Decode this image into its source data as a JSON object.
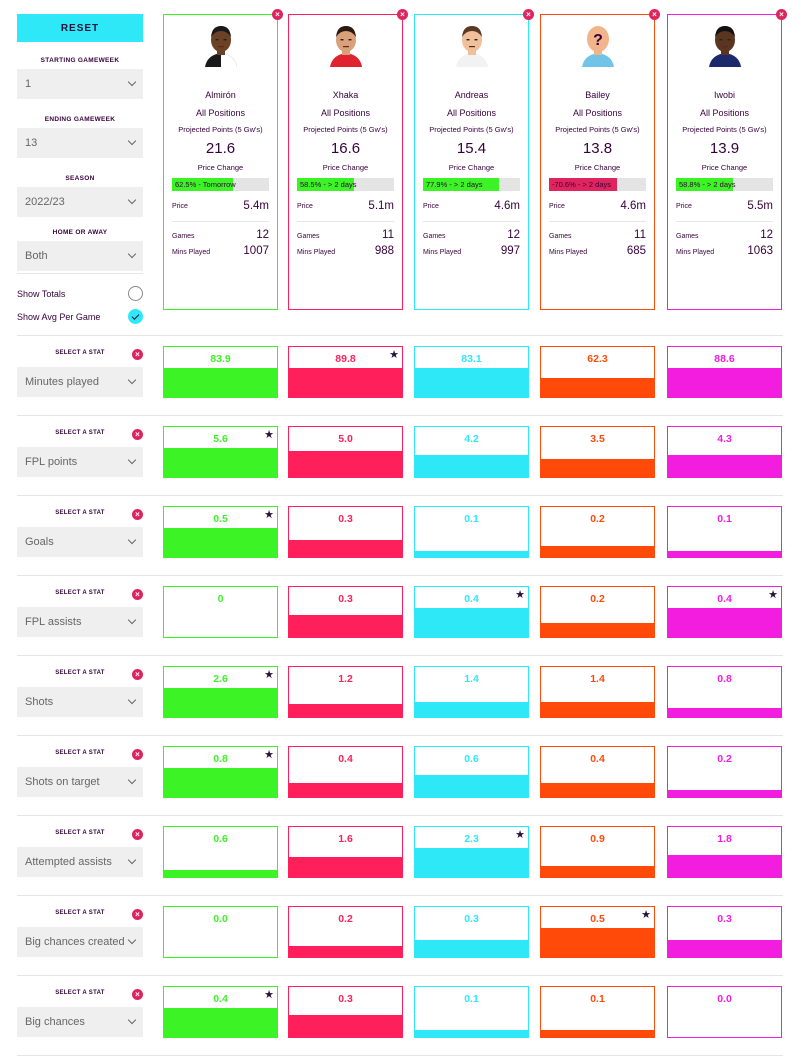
{
  "sidebar": {
    "reset_label": "RESET",
    "starting_gameweek": {
      "label": "STARTING GAMEWEEK",
      "value": "1"
    },
    "ending_gameweek": {
      "label": "ENDING GAMEWEEK",
      "value": "13"
    },
    "season": {
      "label": "SEASON",
      "value": "2022/23"
    },
    "home_away": {
      "label": "HOME OR AWAY",
      "value": "Both"
    },
    "show_totals": {
      "label": "Show Totals",
      "checked": false
    },
    "show_avg": {
      "label": "Show Avg Per Game",
      "checked": true
    }
  },
  "labels": {
    "projected": "Projected Points (5 Gw's)",
    "price_change": "Price Change",
    "price": "Price",
    "games": "Games",
    "mins": "Mins Played",
    "select_stat": "SELECT A STAT",
    "remove": "×",
    "star": "★"
  },
  "players": [
    {
      "name": "Almirón",
      "position": "All Positions",
      "projected": "21.6",
      "price_change_text": "62.5% - Tomorrow",
      "price_change_pct": 62.5,
      "price_change_color": "#3cf425",
      "price": "5.4m",
      "games": "12",
      "mins": "1007",
      "color": "#3cf425",
      "skin": "#6b4226",
      "hair": "#1a1a1a",
      "shirt": "#1a1a1a",
      "shirt2": "#ffffff",
      "unknown": false
    },
    {
      "name": "Xhaka",
      "position": "All Positions",
      "projected": "16.6",
      "price_change_text": "58.5% - > 2 days",
      "price_change_pct": 58.5,
      "price_change_color": "#3cf425",
      "price": "5.1m",
      "games": "11",
      "mins": "988",
      "color": "#ff1f5a",
      "skin": "#d9a07a",
      "hair": "#2b1a10",
      "shirt": "#e0242f",
      "shirt2": "#e0242f",
      "unknown": false
    },
    {
      "name": "Andreas",
      "position": "All Positions",
      "projected": "15.4",
      "price_change_text": "77.9% - > 2 days",
      "price_change_pct": 77.9,
      "price_change_color": "#3cf425",
      "price": "4.6m",
      "games": "12",
      "mins": "997",
      "color": "#2ee8f8",
      "skin": "#efc09a",
      "hair": "#5a3a22",
      "shirt": "#f2f2f2",
      "shirt2": "#f2f2f2",
      "unknown": false
    },
    {
      "name": "Bailey",
      "position": "All Positions",
      "projected": "13.8",
      "price_change_text": "-70.6% - > 2 days",
      "price_change_pct": 70.6,
      "price_change_color": "#e0245e",
      "price": "4.6m",
      "games": "11",
      "mins": "685",
      "color": "#ff4a0a",
      "skin": "#f2b48a",
      "hair": "#f2b48a",
      "shirt": "#6fc4e8",
      "shirt2": "#6fc4e8",
      "unknown": true
    },
    {
      "name": "Iwobi",
      "position": "All Positions",
      "projected": "13.9",
      "price_change_text": "58.8% - > 2 days",
      "price_change_pct": 58.8,
      "price_change_color": "#3cf425",
      "price": "5.5m",
      "games": "12",
      "mins": "1063",
      "color": "#f21dde",
      "skin": "#5a3520",
      "hair": "#111111",
      "shirt": "#1c2a6b",
      "shirt2": "#1c2a6b",
      "unknown": false
    }
  ],
  "stats": [
    {
      "name": "Minutes played",
      "values": [
        "83.9",
        "89.8",
        "83.1",
        "62.3",
        "88.6"
      ],
      "fill": [
        0.58,
        0.58,
        0.58,
        0.39,
        0.58
      ],
      "best": 1
    },
    {
      "name": "FPL points",
      "values": [
        "5.6",
        "5.0",
        "4.2",
        "3.5",
        "4.3"
      ],
      "fill": [
        0.58,
        0.52,
        0.44,
        0.37,
        0.45
      ],
      "best": 0
    },
    {
      "name": "Goals",
      "values": [
        "0.5",
        "0.3",
        "0.1",
        "0.2",
        "0.1"
      ],
      "fill": [
        0.58,
        0.35,
        0.12,
        0.23,
        0.12
      ],
      "best": 0
    },
    {
      "name": "FPL assists",
      "values": [
        "0",
        "0.3",
        "0.4",
        "0.2",
        "0.4"
      ],
      "fill": [
        0.0,
        0.44,
        0.58,
        0.29,
        0.58
      ],
      "best": [
        2,
        4
      ]
    },
    {
      "name": "Shots",
      "values": [
        "2.6",
        "1.2",
        "1.4",
        "1.4",
        "0.8"
      ],
      "fill": [
        0.58,
        0.27,
        0.31,
        0.31,
        0.18
      ],
      "best": 0
    },
    {
      "name": "Shots on target",
      "values": [
        "0.8",
        "0.4",
        "0.6",
        "0.4",
        "0.2"
      ],
      "fill": [
        0.58,
        0.29,
        0.44,
        0.29,
        0.15
      ],
      "best": 0
    },
    {
      "name": "Attempted assists",
      "values": [
        "0.6",
        "1.6",
        "2.3",
        "0.9",
        "1.8"
      ],
      "fill": [
        0.15,
        0.4,
        0.58,
        0.23,
        0.45
      ],
      "best": 2
    },
    {
      "name": "Big chances created",
      "values": [
        "0.0",
        "0.2",
        "0.3",
        "0.5",
        "0.3"
      ],
      "fill": [
        0.0,
        0.23,
        0.35,
        0.58,
        0.35
      ],
      "best": 3
    },
    {
      "name": "Big chances",
      "values": [
        "0.4",
        "0.3",
        "0.1",
        "0.1",
        "0.0"
      ],
      "fill": [
        0.58,
        0.44,
        0.15,
        0.15,
        0.0
      ],
      "best": 0
    }
  ]
}
